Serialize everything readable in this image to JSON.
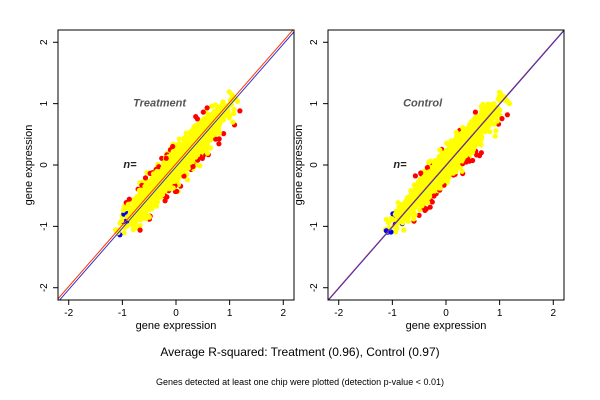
{
  "figure": {
    "footer_main": "Average R-squared: Treatment (0.96), Control (0.97)",
    "footer_note": "Genes detected at least one chip were plotted (detection p-value < 0.01)"
  },
  "colors": {
    "points_primary": "#ffff00",
    "points_secondary": "#ff0000",
    "points_tertiary": "#0000ff",
    "fit_line_red": "#ff3300",
    "fit_line_blue": "#3333cc",
    "panel_title": "#555555"
  },
  "chart_data": [
    {
      "type": "scatter",
      "title": "Treatment",
      "annotation": "n=",
      "xlabel": "gene expression",
      "ylabel": "gene expression",
      "xlim": [
        -2.2,
        2.2
      ],
      "ylim": [
        -2.2,
        2.2
      ],
      "xticks": [
        -2,
        -1,
        0,
        1,
        2
      ],
      "yticks": [
        -2,
        -1,
        0,
        1,
        2
      ],
      "grid": false,
      "reference_lines": [
        {
          "color": "red",
          "intercept": 0.02,
          "slope": 1.0
        },
        {
          "color": "blue",
          "intercept": -0.03,
          "slope": 1.0
        }
      ],
      "point_cloud": {
        "center": [
          0.0,
          0.0
        ],
        "x_range": [
          -1.15,
          1.2
        ],
        "y_range": [
          -1.15,
          1.2
        ],
        "correlation": 0.96,
        "colors": [
          "yellow",
          "red",
          "blue"
        ]
      },
      "r_squared": 0.96
    },
    {
      "type": "scatter",
      "title": "Control",
      "annotation": "n=",
      "xlabel": "gene expression",
      "ylabel": "gene expression",
      "xlim": [
        -2.2,
        2.2
      ],
      "ylim": [
        -2.2,
        2.2
      ],
      "xticks": [
        -2,
        -1,
        0,
        1,
        2
      ],
      "yticks": [
        -2,
        -1,
        0,
        1,
        2
      ],
      "grid": false,
      "reference_lines": [
        {
          "color": "red",
          "intercept": 0.0,
          "slope": 1.0
        },
        {
          "color": "blue",
          "intercept": -0.01,
          "slope": 1.0
        }
      ],
      "point_cloud": {
        "center": [
          0.0,
          0.0
        ],
        "x_range": [
          -1.15,
          1.2
        ],
        "y_range": [
          -1.1,
          1.2
        ],
        "correlation": 0.97,
        "colors": [
          "yellow",
          "red",
          "blue"
        ]
      },
      "r_squared": 0.97
    }
  ]
}
